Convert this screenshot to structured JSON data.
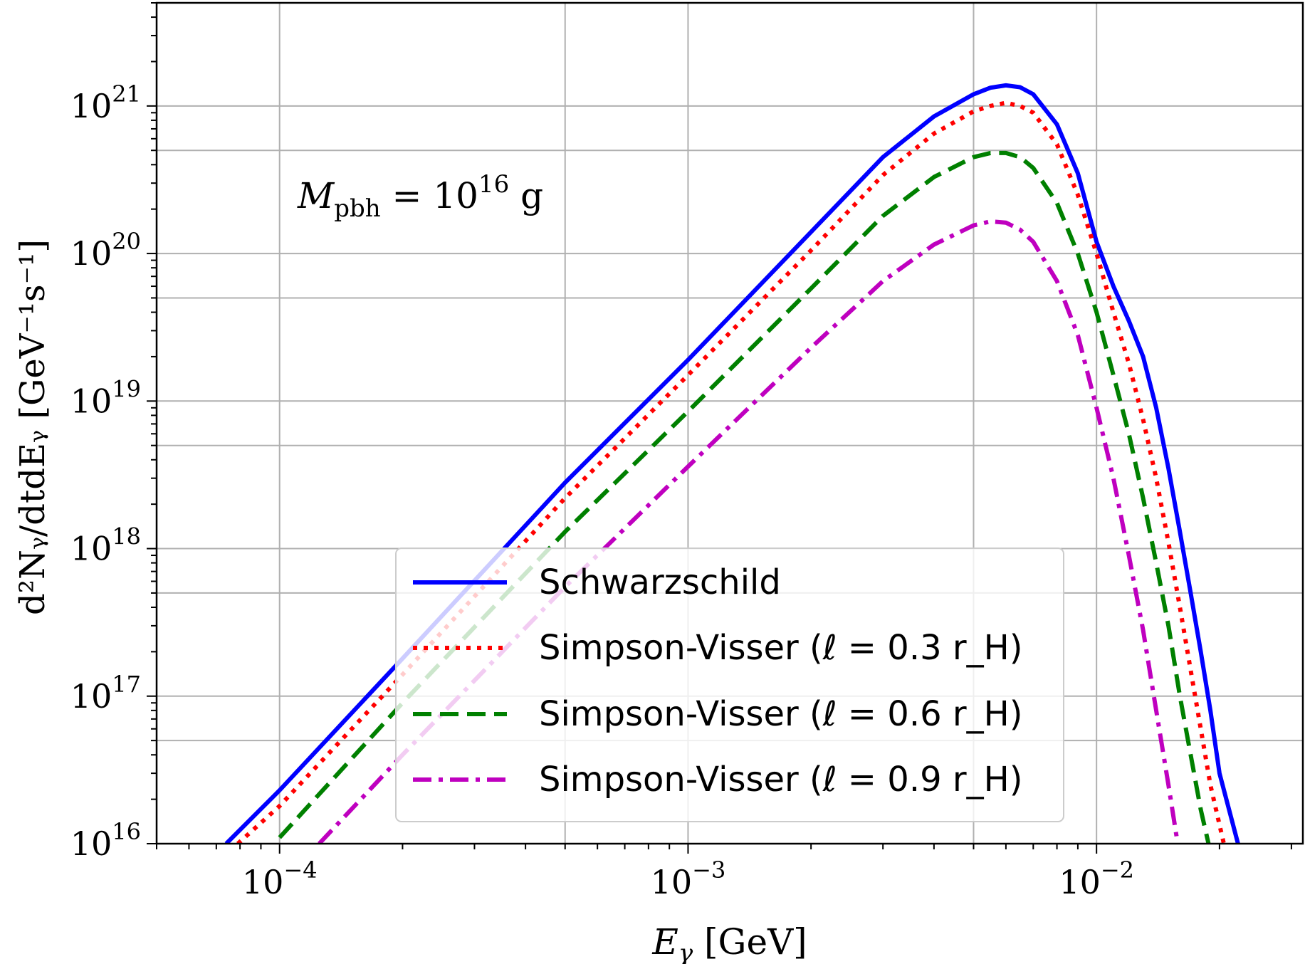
{
  "chart_data": {
    "type": "line",
    "title": "",
    "annotation": {
      "text_main": "M",
      "text_sub": "pbh",
      "text_eq": " = 10",
      "text_exp": "16",
      "text_unit": " g"
    },
    "xlabel": {
      "main": "E",
      "sub": "γ",
      "unit": " [GeV]"
    },
    "ylabel": "d²Nᵧ/dtdEᵧ [GeV⁻¹s⁻¹]",
    "x_scale": "log",
    "y_scale": "log",
    "xlim": [
      5e-05,
      0.032
    ],
    "ylim": [
      1e+16,
      5e+21
    ],
    "grid": true,
    "legend_position": "lower-center",
    "x_ticks": [
      {
        "value": 0.0001,
        "base": "10",
        "exp": "−4"
      },
      {
        "value": 0.001,
        "base": "10",
        "exp": "−3"
      },
      {
        "value": 0.01,
        "base": "10",
        "exp": "−2"
      }
    ],
    "y_ticks": [
      {
        "value": 1e+16,
        "base": "10",
        "exp": "16"
      },
      {
        "value": 1e+17,
        "base": "10",
        "exp": "17"
      },
      {
        "value": 1e+18,
        "base": "10",
        "exp": "18"
      },
      {
        "value": 1e+19,
        "base": "10",
        "exp": "19"
      },
      {
        "value": 1e+20,
        "base": "10",
        "exp": "20"
      },
      {
        "value": 1e+21,
        "base": "10",
        "exp": "21"
      }
    ],
    "series": [
      {
        "name": "Schwarzschild",
        "color": "#0000ff",
        "dash": "solid",
        "x": [
          7.4e-05,
          0.0001,
          0.0002,
          0.0005,
          0.001,
          0.002,
          0.003,
          0.004,
          0.005,
          0.0055,
          0.006,
          0.0065,
          0.007,
          0.008,
          0.009,
          0.01,
          0.011,
          0.012,
          0.013,
          0.014,
          0.015,
          0.016,
          0.017,
          0.018,
          0.019,
          0.02,
          0.021,
          0.0222
        ],
        "y": [
          1e+16,
          2.3e+16,
          1.8e+17,
          2.8e+18,
          1.9e+19,
          1.4e+20,
          4.5e+20,
          8.5e+20,
          1.2e+21,
          1.33e+21,
          1.38e+21,
          1.34e+21,
          1.2e+21,
          7.5e+20,
          3.5e+20,
          1.2e+20,
          6e+19,
          3.5e+19,
          2e+19,
          9e+18,
          3.5e+18,
          1.3e+18,
          5e+17,
          2e+17,
          8e+16,
          3e+16,
          1.8e+16,
          1e+16
        ]
      },
      {
        "name": "Simpson-Visser (ℓ = 0.3 r_H)",
        "color": "#ff0000",
        "dash": "dotted",
        "x": [
          7.9e-05,
          0.0001,
          0.0002,
          0.0005,
          0.001,
          0.002,
          0.003,
          0.004,
          0.005,
          0.0055,
          0.006,
          0.0065,
          0.007,
          0.008,
          0.009,
          0.01,
          0.011,
          0.012,
          0.013,
          0.014,
          0.015,
          0.016,
          0.017,
          0.018,
          0.019,
          0.0205
        ],
        "y": [
          1e+16,
          1.8e+16,
          1.4e+17,
          2.2e+18,
          1.5e+19,
          1.05e+20,
          3.4e+20,
          6.5e+20,
          9.2e+20,
          1e+21,
          1.05e+21,
          1e+21,
          9e+20,
          5.5e+20,
          2.5e+20,
          1e+20,
          4e+19,
          1.8e+19,
          7.5e+18,
          3e+18,
          1.1e+18,
          4e+17,
          1.5e+17,
          6e+16,
          2.5e+16,
          1e+16
        ]
      },
      {
        "name": "Simpson-Visser (ℓ = 0.6 r_H)",
        "color": "#008000",
        "dash": "dashed",
        "x": [
          0.0001,
          0.0002,
          0.0005,
          0.001,
          0.002,
          0.003,
          0.004,
          0.005,
          0.0055,
          0.006,
          0.0065,
          0.007,
          0.008,
          0.009,
          0.01,
          0.011,
          0.012,
          0.013,
          0.014,
          0.015,
          0.016,
          0.017,
          0.018,
          0.0188
        ],
        "y": [
          1.1e+16,
          9e+16,
          1.3e+18,
          8.5e+18,
          5.8e+19,
          1.8e+20,
          3.3e+20,
          4.5e+20,
          4.8e+20,
          4.8e+20,
          4.5e+20,
          3.8e+20,
          2.2e+20,
          1e+20,
          4e+19,
          1.5e+19,
          6e+18,
          2.2e+18,
          8e+17,
          3e+17,
          1e+17,
          4e+16,
          1.7e+16,
          1e+16
        ]
      },
      {
        "name": "Simpson-Visser (ℓ = 0.9 r_H)",
        "color": "#bf00bf",
        "dash": "dashdot",
        "x": [
          0.000125,
          0.0002,
          0.0005,
          0.001,
          0.002,
          0.003,
          0.004,
          0.005,
          0.0055,
          0.006,
          0.0065,
          0.007,
          0.008,
          0.009,
          0.01,
          0.011,
          0.012,
          0.013,
          0.014,
          0.015,
          0.0158
        ],
        "y": [
          1e+16,
          4e+16,
          5.5e+17,
          3.6e+18,
          2.3e+19,
          6.5e+19,
          1.15e+20,
          1.55e+20,
          1.65e+20,
          1.62e+20,
          1.45e+20,
          1.2e+20,
          6.5e+19,
          2.8e+19,
          9e+18,
          3e+18,
          9e+17,
          2.8e+17,
          8e+16,
          2.5e+16,
          1e+16
        ]
      }
    ]
  }
}
